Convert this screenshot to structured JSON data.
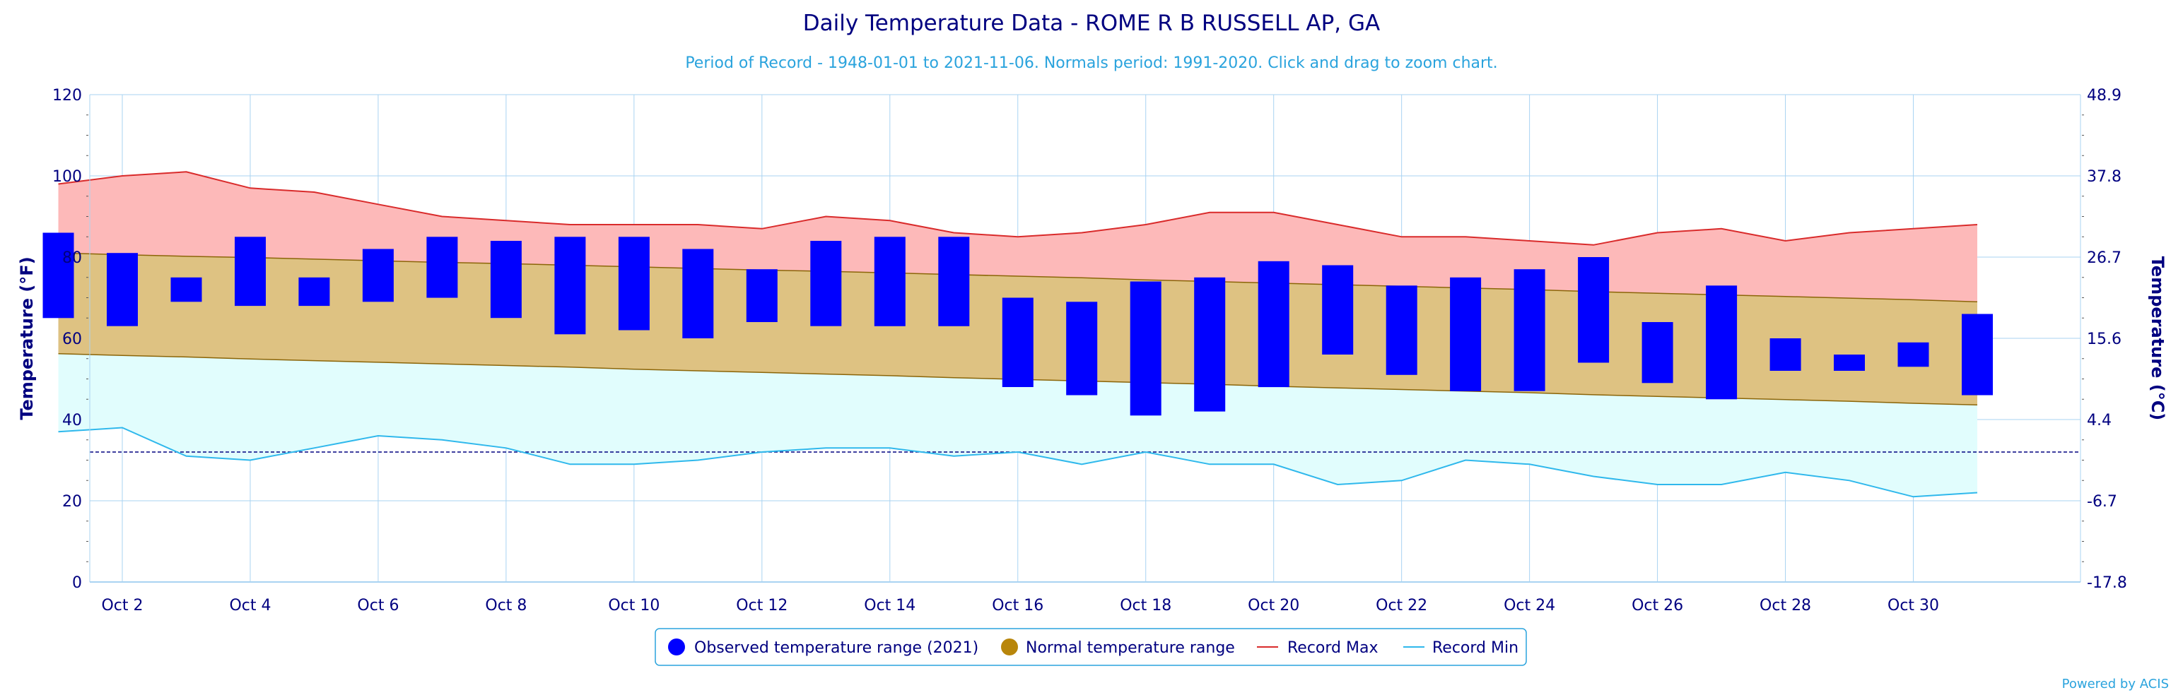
{
  "chart_data": {
    "type": "bar",
    "title": "Daily Temperature Data - ROME R B RUSSELL AP, GA",
    "subtitle": "Period of Record - 1948-01-01 to 2021-11-06. Normals period: 1991-2020. Click and drag to zoom chart.",
    "xlabel": "",
    "ylabel": "Temperature (°F)",
    "ylabel_right": "Temperature (°C)",
    "ylim": [
      0,
      120
    ],
    "y_ticks": [
      0,
      20,
      40,
      60,
      80,
      100,
      120
    ],
    "y_ticks_right": [
      "-17.8",
      "-6.7",
      "4.4",
      "15.6",
      "26.7",
      "37.8",
      "48.9"
    ],
    "x": [
      1,
      2,
      3,
      4,
      5,
      6,
      7,
      8,
      9,
      10,
      11,
      12,
      13,
      14,
      15,
      16,
      17,
      18,
      19,
      20,
      21,
      22,
      23,
      24,
      25,
      26,
      27,
      28,
      29,
      30,
      31
    ],
    "x_tick_labels": [
      "Oct 2",
      "Oct 4",
      "Oct 6",
      "Oct 8",
      "Oct 10",
      "Oct 12",
      "Oct 14",
      "Oct 16",
      "Oct 18",
      "Oct 20",
      "Oct 22",
      "Oct 24",
      "Oct 26",
      "Oct 28",
      "Oct 30"
    ],
    "x_tick_days": [
      2,
      4,
      6,
      8,
      10,
      12,
      14,
      16,
      18,
      20,
      22,
      24,
      26,
      28,
      30
    ],
    "freezing_line": 32,
    "grid": true,
    "legend_position": "bottom-center",
    "series": [
      {
        "name": "Observed temperature range (2021)",
        "color": "#0000ff",
        "high": [
          86,
          81,
          75,
          85,
          75,
          82,
          85,
          84,
          85,
          85,
          82,
          77,
          84,
          85,
          85,
          70,
          69,
          74,
          75,
          79,
          78,
          73,
          75,
          77,
          80,
          64,
          73,
          60,
          56,
          59,
          66
        ],
        "low": [
          65,
          63,
          69,
          68,
          68,
          69,
          70,
          65,
          61,
          62,
          60,
          64,
          63,
          63,
          63,
          48,
          46,
          41,
          42,
          48,
          56,
          51,
          47,
          47,
          54,
          49,
          45,
          52,
          52,
          53,
          46
        ]
      },
      {
        "name": "Normal temperature range",
        "color": "#b8860b",
        "high": [
          81,
          80.6,
          80.2,
          79.9,
          79.5,
          79.1,
          78.7,
          78.4,
          78,
          77.6,
          77.2,
          76.8,
          76.5,
          76.1,
          75.7,
          75.3,
          74.9,
          74.4,
          74,
          73.6,
          73.2,
          72.8,
          72.4,
          72,
          71.5,
          71.1,
          70.7,
          70.3,
          69.9,
          69.5,
          69
        ],
        "low": [
          56.2,
          55.8,
          55.4,
          54.9,
          54.5,
          54.1,
          53.7,
          53.3,
          52.9,
          52.4,
          52,
          51.6,
          51.2,
          50.8,
          50.3,
          49.9,
          49.5,
          49.1,
          48.7,
          48.2,
          47.8,
          47.4,
          47,
          46.6,
          46.1,
          45.7,
          45.3,
          44.9,
          44.5,
          44,
          43.6
        ]
      },
      {
        "name": "Record Max",
        "color": "#d92b2b",
        "values": [
          98,
          100,
          101,
          97,
          96,
          93,
          90,
          89,
          88,
          88,
          88,
          87,
          90,
          89,
          86,
          85,
          86,
          88,
          91,
          91,
          88,
          85,
          85,
          84,
          83,
          86,
          87,
          84,
          86,
          87,
          88
        ]
      },
      {
        "name": "Record Min",
        "color": "#2fb8ec",
        "values": [
          37,
          38,
          31,
          30,
          33,
          36,
          35,
          33,
          29,
          29,
          30,
          32,
          33,
          33,
          31,
          32,
          29,
          32,
          29,
          29,
          24,
          25,
          30,
          29,
          26,
          24,
          24,
          27,
          25,
          21,
          22
        ]
      }
    ],
    "fills": {
      "record_max_band": "#fdb9b9",
      "normal_band": "#dec282",
      "record_min_band": "#e1fdfd"
    }
  },
  "credit": "Powered by ACIS"
}
